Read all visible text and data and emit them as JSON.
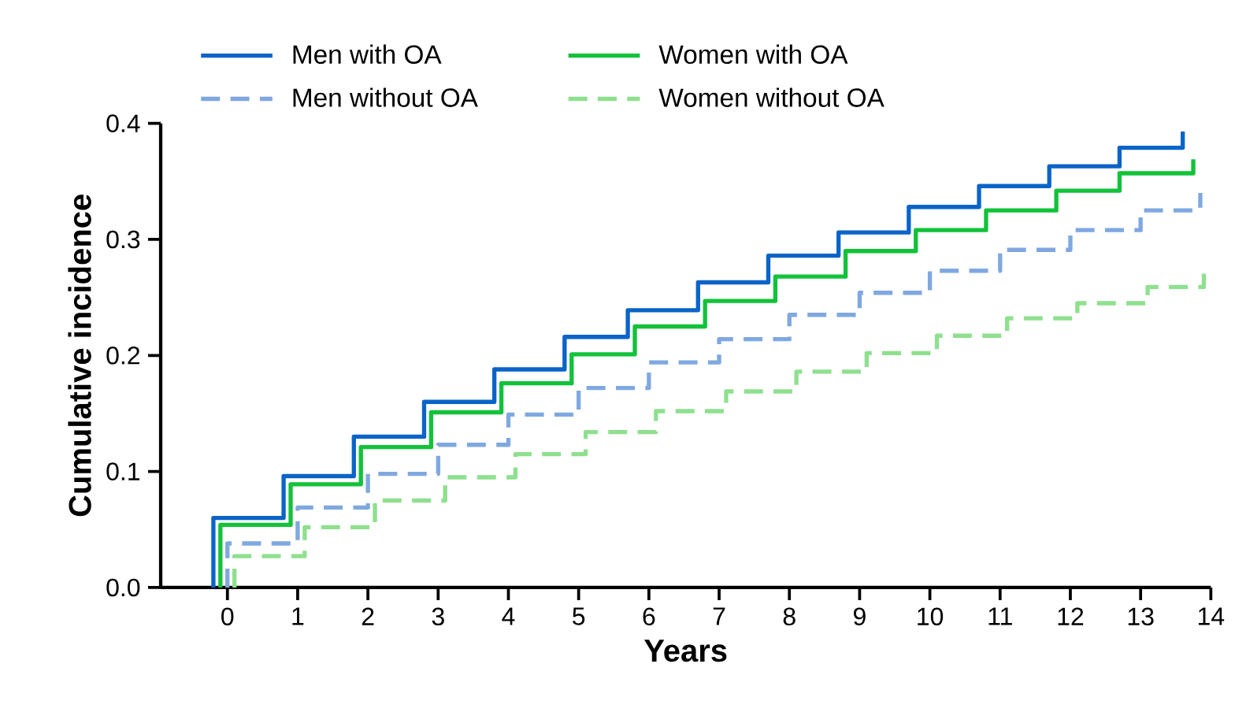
{
  "chart_data": {
    "type": "step",
    "xlabel": "Years",
    "ylabel": "Cumulative incidence",
    "xlim": [
      -0.95,
      14
    ],
    "ylim": [
      0,
      0.4
    ],
    "xticks": [
      0,
      1,
      2,
      3,
      4,
      5,
      6,
      7,
      8,
      9,
      10,
      11,
      12,
      13,
      14
    ],
    "yticks": [
      {
        "value": 0,
        "label": "0.0"
      },
      {
        "value": 0.1,
        "label": "0.1"
      },
      {
        "value": 0.2,
        "label": "0.2"
      },
      {
        "value": 0.3,
        "label": "0.3"
      },
      {
        "value": 0.4,
        "label": "0.4"
      }
    ],
    "legend": "top",
    "marker": "none",
    "series": [
      {
        "name": "Men with OA",
        "color": "#0a64c8",
        "line_style": "solid",
        "x": [
          -0.2,
          -0.2,
          0.8,
          1.8,
          2.8,
          3.8,
          4.8,
          5.7,
          6.7,
          7.7,
          8.7,
          9.7,
          10.7,
          11.7,
          12.7,
          13.6
        ],
        "values": [
          0,
          0.06,
          0.096,
          0.13,
          0.16,
          0.188,
          0.216,
          0.239,
          0.263,
          0.286,
          0.306,
          0.328,
          0.346,
          0.363,
          0.379,
          0.393
        ]
      },
      {
        "name": "Women with OA",
        "color": "#12c23a",
        "line_style": "solid",
        "x": [
          -0.1,
          -0.1,
          0.9,
          1.9,
          2.9,
          3.9,
          4.9,
          5.8,
          6.8,
          7.8,
          8.8,
          9.8,
          10.8,
          11.8,
          12.7,
          13.75
        ],
        "values": [
          0,
          0.054,
          0.089,
          0.121,
          0.151,
          0.176,
          0.201,
          0.225,
          0.247,
          0.268,
          0.29,
          0.308,
          0.325,
          0.342,
          0.357,
          0.369
        ]
      },
      {
        "name": "Men without OA",
        "color": "#7fa8e0",
        "line_style": "dashed",
        "x": [
          0,
          0,
          1,
          2,
          3,
          4,
          5,
          6,
          7,
          8,
          9,
          10,
          11,
          12,
          13,
          13.85
        ],
        "values": [
          0,
          0.038,
          0.069,
          0.098,
          0.123,
          0.149,
          0.172,
          0.194,
          0.214,
          0.235,
          0.254,
          0.273,
          0.291,
          0.308,
          0.325,
          0.34
        ]
      },
      {
        "name": "Women without OA",
        "color": "#8ee08e",
        "line_style": "dashed",
        "x": [
          0.1,
          0.1,
          1.1,
          2.1,
          3.1,
          4.1,
          5.1,
          6.1,
          7.1,
          8.1,
          9.1,
          10.1,
          11.1,
          12.1,
          13.1,
          13.9
        ],
        "values": [
          0,
          0.027,
          0.052,
          0.075,
          0.095,
          0.115,
          0.134,
          0.152,
          0.169,
          0.186,
          0.202,
          0.217,
          0.232,
          0.245,
          0.259,
          0.273
        ]
      }
    ]
  }
}
